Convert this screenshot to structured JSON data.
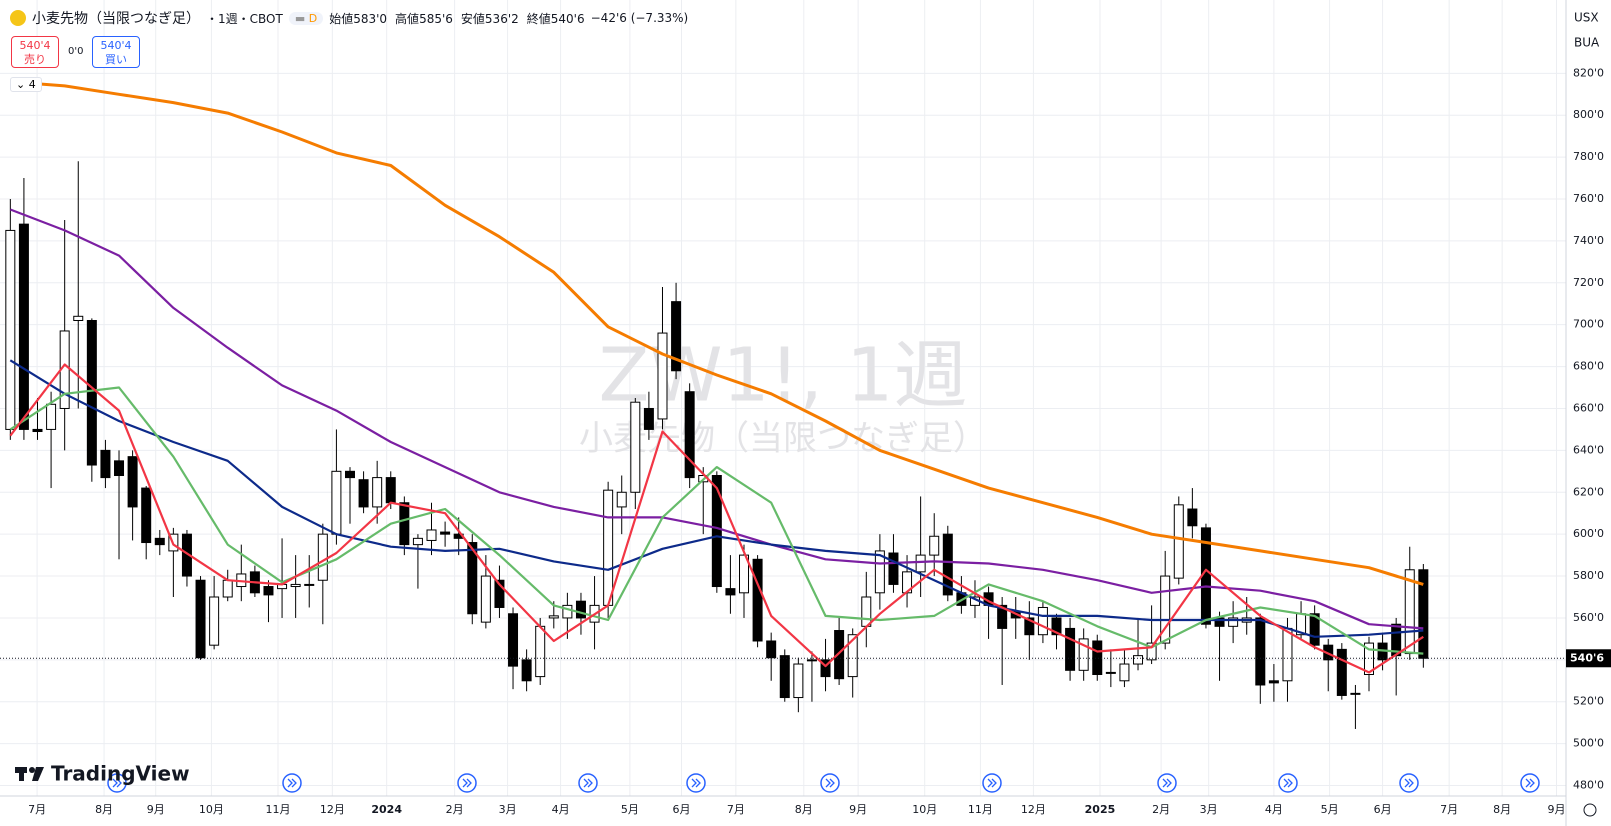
{
  "header": {
    "symbol": "小麦先物（当限つなぎ足）",
    "interval": "・1週・CBOT",
    "badge": "D",
    "ohlc": [
      {
        "label": "始値",
        "value": "583'0"
      },
      {
        "label": "高値",
        "value": "585'6"
      },
      {
        "label": "安値",
        "value": "536'2"
      },
      {
        "label": "終値",
        "value": "540'6"
      }
    ],
    "change": "−42'6 (−7.33%)"
  },
  "trade": {
    "sell_price": "540'4",
    "sell": "売り",
    "spread": "0'0",
    "buy_price": "540'4",
    "buy": "買い"
  },
  "indicators_count": "4",
  "watermark": {
    "title": "ZW1!, 1週",
    "subtitle": "小麦先物（当限つなぎ足）"
  },
  "logo": "TradingView",
  "axis_units": [
    "USX",
    "BUA"
  ],
  "chart_data": {
    "type": "candlestick",
    "up_color": "#ffffff",
    "down_color": "#000000",
    "grid": true,
    "x": [
      0,
      1,
      2,
      3,
      4,
      5,
      6,
      7,
      8,
      9,
      10,
      11,
      12,
      13,
      14,
      15,
      16,
      17,
      18,
      19,
      20,
      21,
      22,
      23,
      24,
      25,
      26,
      27,
      28,
      29,
      30,
      31,
      32,
      33,
      34,
      35,
      36,
      37,
      38,
      39,
      40,
      41,
      42,
      43,
      44,
      45,
      46,
      47,
      48,
      49,
      50,
      51,
      52,
      53,
      54,
      55,
      56,
      57,
      58,
      59,
      60,
      61,
      62,
      63,
      64,
      65,
      66,
      67,
      68,
      69,
      70,
      71,
      72,
      73,
      74,
      75,
      76,
      77,
      78,
      79,
      80,
      81,
      82,
      83,
      84,
      85,
      86,
      87,
      88,
      89,
      90,
      91,
      92,
      93,
      94,
      95,
      96,
      97,
      98,
      99,
      100,
      101,
      102,
      103,
      104
    ],
    "open": [
      650,
      748,
      650,
      650,
      660,
      702,
      702,
      640,
      635,
      637,
      622,
      598,
      592,
      600,
      578,
      547,
      570,
      575,
      582,
      575,
      574,
      575,
      576,
      578,
      600,
      630,
      626,
      613,
      627,
      615,
      595,
      597,
      601,
      600,
      596,
      558,
      578,
      562,
      540,
      532,
      560,
      560,
      568,
      558,
      566,
      613,
      620,
      660,
      655,
      711,
      668,
      625,
      628,
      574,
      572,
      588,
      549,
      542,
      522,
      540,
      540,
      554,
      532,
      556,
      572,
      591,
      572,
      582,
      590,
      600,
      572,
      566,
      572,
      566,
      563,
      560,
      552,
      560,
      555,
      535,
      549,
      534,
      530,
      538,
      540,
      548,
      579,
      612,
      603,
      560,
      556,
      558,
      560,
      530,
      530,
      552,
      562,
      547,
      545,
      524,
      533,
      548,
      557,
      543,
      583
    ],
    "high": [
      760,
      770,
      665,
      668,
      750,
      778,
      703,
      645,
      640,
      640,
      623,
      602,
      603,
      602,
      580,
      580,
      583,
      595,
      585,
      578,
      598,
      590,
      590,
      605,
      650,
      632,
      630,
      635,
      630,
      618,
      600,
      615,
      606,
      608,
      600,
      590,
      585,
      565,
      545,
      560,
      568,
      572,
      572,
      580,
      625,
      628,
      665,
      668,
      718,
      720,
      672,
      632,
      630,
      590,
      595,
      590,
      553,
      545,
      541,
      544,
      550,
      560,
      555,
      582,
      600,
      600,
      590,
      618,
      610,
      604,
      580,
      578,
      575,
      570,
      570,
      568,
      568,
      562,
      560,
      555,
      552,
      545,
      545,
      560,
      566,
      592,
      618,
      622,
      605,
      563,
      568,
      570,
      562,
      538,
      560,
      568,
      566,
      550,
      548,
      528,
      551,
      553,
      560,
      594,
      585.75
    ],
    "low": [
      645,
      645,
      645,
      622,
      640,
      660,
      625,
      622,
      588,
      597,
      588,
      590,
      570,
      575,
      540,
      545,
      568,
      568,
      570,
      558,
      560,
      560,
      565,
      557,
      595,
      605,
      610,
      605,
      612,
      590,
      574,
      590,
      594,
      590,
      557,
      555,
      560,
      526,
      525,
      528,
      555,
      550,
      552,
      545,
      560,
      600,
      612,
      645,
      650,
      674,
      622,
      600,
      572,
      562,
      560,
      546,
      530,
      520,
      515,
      520,
      525,
      528,
      522,
      546,
      564,
      572,
      565,
      570,
      580,
      568,
      562,
      560,
      550,
      528,
      550,
      540,
      548,
      545,
      530,
      530,
      530,
      527,
      527,
      535,
      538,
      545,
      576,
      598,
      555,
      530,
      548,
      552,
      519,
      520,
      520,
      550,
      545,
      525,
      521,
      507,
      525,
      535,
      523,
      540,
      536.25
    ],
    "close": [
      745,
      650,
      649,
      662,
      697,
      704,
      633,
      627,
      628,
      613,
      596,
      595,
      600,
      580,
      541,
      570,
      578,
      581,
      572,
      571,
      576,
      576,
      576,
      600,
      630,
      627,
      613,
      627,
      615,
      595,
      598,
      602,
      600,
      598,
      562,
      580,
      565,
      537,
      530,
      556,
      561,
      566,
      560,
      566,
      621,
      620,
      663,
      650,
      696,
      678,
      627,
      628,
      575,
      571,
      590,
      549,
      541,
      522,
      538,
      540,
      532,
      531,
      552,
      570,
      592,
      576,
      582,
      590,
      599,
      571,
      566,
      570,
      566,
      555,
      560,
      552,
      565,
      552,
      535,
      550,
      533,
      534,
      538,
      542,
      548,
      580,
      614,
      604,
      557,
      556,
      560,
      560,
      528,
      529,
      555,
      562,
      547,
      540,
      523,
      524,
      548,
      540,
      542,
      583,
      540.75
    ],
    "moving_averages": [
      {
        "color": "#f57c00",
        "x": [
          0,
          4,
          8,
          12,
          16,
          20,
          24,
          28,
          32,
          36,
          40,
          44,
          48,
          52,
          56,
          60,
          64,
          68,
          72,
          76,
          80,
          84,
          88,
          92,
          96,
          100,
          104
        ],
        "values": [
          816,
          814,
          810,
          806,
          801,
          792,
          782,
          776,
          757,
          742,
          725,
          699,
          686,
          676,
          667,
          654,
          640,
          631,
          622,
          615,
          608,
          600,
          596,
          592,
          588,
          584,
          576
        ]
      },
      {
        "color": "#7b1fa2",
        "x": [
          0,
          4,
          8,
          12,
          16,
          20,
          24,
          28,
          32,
          36,
          40,
          44,
          48,
          52,
          56,
          60,
          64,
          68,
          72,
          76,
          80,
          84,
          88,
          92,
          96,
          100,
          104
        ],
        "values": [
          755,
          745,
          733,
          708,
          689,
          671,
          659,
          644,
          632,
          620,
          613,
          608,
          608,
          603,
          595,
          588,
          586,
          587,
          586,
          583,
          578,
          572,
          575,
          573,
          568,
          557,
          555
        ]
      },
      {
        "color": "#0d2a8a",
        "x": [
          0,
          4,
          8,
          12,
          16,
          20,
          24,
          28,
          32,
          36,
          40,
          44,
          48,
          52,
          56,
          60,
          64,
          68,
          72,
          76,
          80,
          84,
          88,
          92,
          96,
          100,
          104
        ],
        "values": [
          683,
          667,
          654,
          644,
          635,
          613,
          600,
          594,
          592,
          593,
          587,
          583,
          593,
          599,
          595,
          592,
          590,
          578,
          566,
          561,
          561,
          559,
          559,
          559,
          551,
          552,
          554
        ]
      },
      {
        "color": "#66bb6a",
        "x": [
          0,
          4,
          8,
          12,
          16,
          20,
          24,
          28,
          32,
          36,
          40,
          44,
          48,
          52,
          56,
          60,
          64,
          68,
          72,
          76,
          80,
          84,
          88,
          92,
          96,
          100,
          104
        ],
        "values": [
          650,
          667,
          670,
          637,
          595,
          577,
          588,
          605,
          612,
          590,
          566,
          559,
          608,
          632,
          615,
          561,
          559,
          561,
          576,
          568,
          556,
          546,
          559,
          565,
          561,
          545,
          543
        ]
      },
      {
        "color": "#f23645",
        "x": [
          0,
          4,
          8,
          12,
          16,
          20,
          24,
          28,
          32,
          36,
          40,
          44,
          48,
          52,
          56,
          60,
          64,
          68,
          72,
          76,
          80,
          84,
          88,
          92,
          96,
          100,
          104
        ],
        "values": [
          647,
          681,
          659,
          595,
          578,
          576,
          591,
          615,
          610,
          576,
          549,
          566,
          649,
          622,
          561,
          537,
          562,
          583,
          568,
          556,
          544,
          546,
          583,
          561,
          546,
          534,
          551
        ]
      }
    ],
    "last_price": {
      "value": 540.75,
      "label": "540'6"
    },
    "xlim": [
      -0.76,
      114.5
    ],
    "ylim": [
      475,
      855
    ],
    "xticks": [
      {
        "value": 1.97,
        "label": "7月"
      },
      {
        "value": 6.9,
        "label": "8月"
      },
      {
        "value": 10.7,
        "label": "9月"
      },
      {
        "value": 14.8,
        "label": "10月"
      },
      {
        "value": 19.7,
        "label": "11月"
      },
      {
        "value": 23.7,
        "label": "12月"
      },
      {
        "value": 27.7,
        "label": "2024"
      },
      {
        "value": 32.7,
        "label": "2月"
      },
      {
        "value": 36.6,
        "label": "3月"
      },
      {
        "value": 40.5,
        "label": "4月"
      },
      {
        "value": 45.6,
        "label": "5月"
      },
      {
        "value": 49.4,
        "label": "6月"
      },
      {
        "value": 53.4,
        "label": "7月"
      },
      {
        "value": 58.4,
        "label": "8月"
      },
      {
        "value": 62.4,
        "label": "9月"
      },
      {
        "value": 67.3,
        "label": "10月"
      },
      {
        "value": 71.4,
        "label": "11月"
      },
      {
        "value": 75.3,
        "label": "12月"
      },
      {
        "value": 80.2,
        "label": "2025"
      },
      {
        "value": 84.7,
        "label": "2月"
      },
      {
        "value": 88.2,
        "label": "3月"
      },
      {
        "value": 93.0,
        "label": "4月"
      },
      {
        "value": 97.1,
        "label": "5月"
      },
      {
        "value": 101.0,
        "label": "6月"
      },
      {
        "value": 105.9,
        "label": "7月"
      },
      {
        "value": 109.8,
        "label": "8月"
      },
      {
        "value": 113.8,
        "label": "9月"
      }
    ],
    "yticks": [
      {
        "value": 480,
        "label": "480'0"
      },
      {
        "value": 500,
        "label": "500'0"
      },
      {
        "value": 520,
        "label": "520'0"
      },
      {
        "value": 540,
        "label": "540'0"
      },
      {
        "value": 560,
        "label": "560'0"
      },
      {
        "value": 580,
        "label": "580'0"
      },
      {
        "value": 600,
        "label": "600'0"
      },
      {
        "value": 620,
        "label": "620'0"
      },
      {
        "value": 640,
        "label": "640'0"
      },
      {
        "value": 660,
        "label": "660'0"
      },
      {
        "value": 680,
        "label": "680'0"
      },
      {
        "value": 700,
        "label": "700'0"
      },
      {
        "value": 720,
        "label": "720'0"
      },
      {
        "value": 740,
        "label": "740'0"
      },
      {
        "value": 760,
        "label": "760'0"
      },
      {
        "value": 780,
        "label": "780'0"
      },
      {
        "value": 800,
        "label": "800'0"
      },
      {
        "value": 820,
        "label": "820'0"
      }
    ]
  }
}
